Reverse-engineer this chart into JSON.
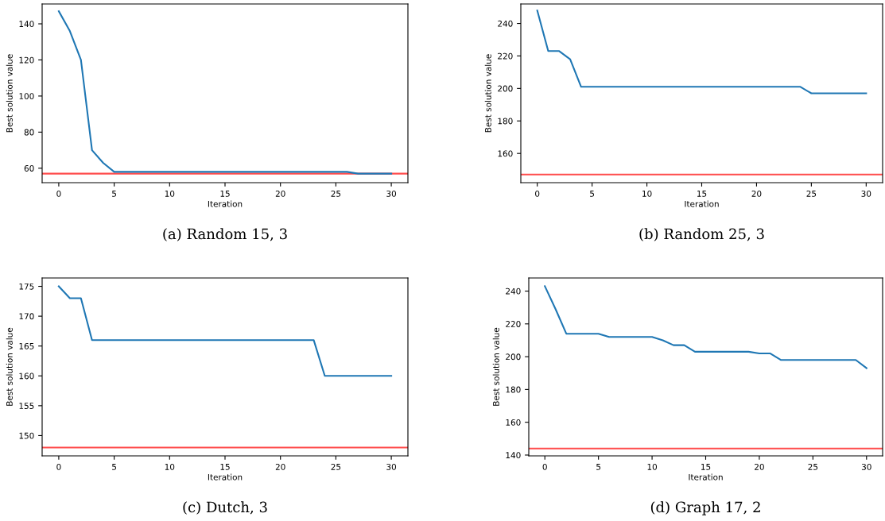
{
  "chart_data": [
    {
      "type": "line",
      "title": "(a) Random 15, 3",
      "xlabel": "Iteration",
      "ylabel": "Best solution value",
      "x": [
        0,
        1,
        2,
        3,
        4,
        5,
        6,
        7,
        8,
        9,
        10,
        11,
        12,
        13,
        14,
        15,
        16,
        17,
        18,
        19,
        20,
        21,
        22,
        23,
        24,
        25,
        26,
        27,
        28,
        29,
        30
      ],
      "series": [
        {
          "color": "#1f77b4",
          "values": [
            147,
            136,
            120,
            70,
            63,
            58,
            58,
            58,
            58,
            58,
            58,
            58,
            58,
            58,
            58,
            58,
            58,
            58,
            58,
            58,
            58,
            58,
            58,
            58,
            58,
            58,
            58,
            57,
            57,
            57,
            57
          ]
        }
      ],
      "xlim": [
        -1.5,
        31.5
      ],
      "ylim": [
        52,
        151
      ],
      "xticks": [
        0,
        5,
        10,
        15,
        20,
        25,
        30
      ],
      "yticks": [
        60,
        80,
        100,
        120,
        140
      ],
      "ref_lines": [
        {
          "axis": "y",
          "value": 57,
          "color": "#ff0000"
        }
      ]
    },
    {
      "type": "line",
      "title": "(b) Random 25, 3",
      "xlabel": "Iteration",
      "ylabel": "Best solution value",
      "x": [
        0,
        1,
        2,
        3,
        4,
        5,
        6,
        7,
        8,
        9,
        10,
        11,
        12,
        13,
        14,
        15,
        16,
        17,
        18,
        19,
        20,
        21,
        22,
        23,
        24,
        25,
        26,
        27,
        28,
        29,
        30
      ],
      "series": [
        {
          "color": "#1f77b4",
          "values": [
            248,
            223,
            223,
            218,
            201,
            201,
            201,
            201,
            201,
            201,
            201,
            201,
            201,
            201,
            201,
            201,
            201,
            201,
            201,
            201,
            201,
            201,
            201,
            201,
            201,
            197,
            197,
            197,
            197,
            197,
            197
          ]
        }
      ],
      "xlim": [
        -1.5,
        31.5
      ],
      "ylim": [
        142,
        252
      ],
      "xticks": [
        0,
        5,
        10,
        15,
        20,
        25,
        30
      ],
      "yticks": [
        160,
        180,
        200,
        220,
        240
      ],
      "ref_lines": [
        {
          "axis": "y",
          "value": 147,
          "color": "#ff0000"
        }
      ]
    },
    {
      "type": "line",
      "title": "(c) Dutch, 3",
      "xlabel": "Iteration",
      "ylabel": "Best solution value",
      "x": [
        0,
        1,
        2,
        3,
        4,
        5,
        6,
        7,
        8,
        9,
        10,
        11,
        12,
        13,
        14,
        15,
        16,
        17,
        18,
        19,
        20,
        21,
        22,
        23,
        24,
        25,
        26,
        27,
        28,
        29,
        30
      ],
      "series": [
        {
          "color": "#1f77b4",
          "values": [
            175,
            173,
            173,
            166,
            166,
            166,
            166,
            166,
            166,
            166,
            166,
            166,
            166,
            166,
            166,
            166,
            166,
            166,
            166,
            166,
            166,
            166,
            166,
            166,
            160,
            160,
            160,
            160,
            160,
            160,
            160
          ]
        }
      ],
      "xlim": [
        -1.5,
        31.5
      ],
      "ylim": [
        146.6,
        176.4
      ],
      "xticks": [
        0,
        5,
        10,
        15,
        20,
        25,
        30
      ],
      "yticks": [
        150,
        155,
        160,
        165,
        170,
        175
      ],
      "ref_lines": [
        {
          "axis": "y",
          "value": 148,
          "color": "#ff0000"
        }
      ]
    },
    {
      "type": "line",
      "title": "(d) Graph 17, 2",
      "xlabel": "Iteration",
      "ylabel": "Best solution value",
      "x": [
        0,
        1,
        2,
        3,
        4,
        5,
        6,
        7,
        8,
        9,
        10,
        11,
        12,
        13,
        14,
        15,
        16,
        17,
        18,
        19,
        20,
        21,
        22,
        23,
        24,
        25,
        26,
        27,
        28,
        29,
        30
      ],
      "series": [
        {
          "color": "#1f77b4",
          "values": [
            243,
            229,
            214,
            214,
            214,
            214,
            212,
            212,
            212,
            212,
            212,
            210,
            207,
            207,
            203,
            203,
            203,
            203,
            203,
            203,
            202,
            202,
            198,
            198,
            198,
            198,
            198,
            198,
            198,
            198,
            193
          ]
        }
      ],
      "xlim": [
        -1.5,
        31.5
      ],
      "ylim": [
        139.5,
        248
      ],
      "xticks": [
        0,
        5,
        10,
        15,
        20,
        25,
        30
      ],
      "yticks": [
        140,
        160,
        180,
        200,
        220,
        240
      ],
      "ref_lines": [
        {
          "axis": "y",
          "value": 144,
          "color": "#ff0000"
        }
      ]
    }
  ]
}
